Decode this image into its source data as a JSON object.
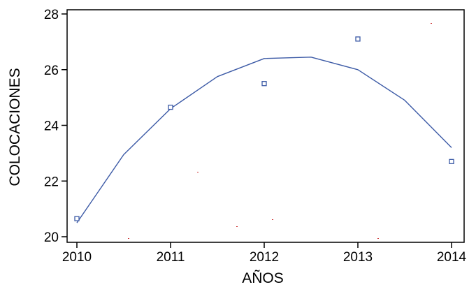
{
  "chart_data": {
    "type": "scatter",
    "xlabel": "AÑOS",
    "ylabel": "COLOCACIONES",
    "xlim": [
      2010,
      2014
    ],
    "ylim": [
      20,
      28
    ],
    "x_ticks": [
      2010,
      2011,
      2012,
      2013,
      2014
    ],
    "y_ticks": [
      20,
      22,
      24,
      26,
      28
    ],
    "grid": false,
    "series": [
      {
        "kind": "points",
        "marker": "square",
        "x": [
          2010,
          2011,
          2012,
          2013,
          2014
        ],
        "y": [
          20.65,
          24.65,
          25.5,
          27.1,
          22.7
        ]
      },
      {
        "kind": "fitted-curve",
        "model": "quadratic",
        "x": [
          2010,
          2010.5,
          2011,
          2011.5,
          2012,
          2012.5,
          2013,
          2013.5,
          2014
        ],
        "y": [
          20.5,
          22.95,
          24.6,
          25.75,
          26.4,
          26.45,
          26.0,
          24.9,
          23.2
        ]
      }
    ],
    "colors": {
      "series": "#3c5aa6",
      "axis": "#000000",
      "stray_marks": "#cc3333"
    }
  }
}
